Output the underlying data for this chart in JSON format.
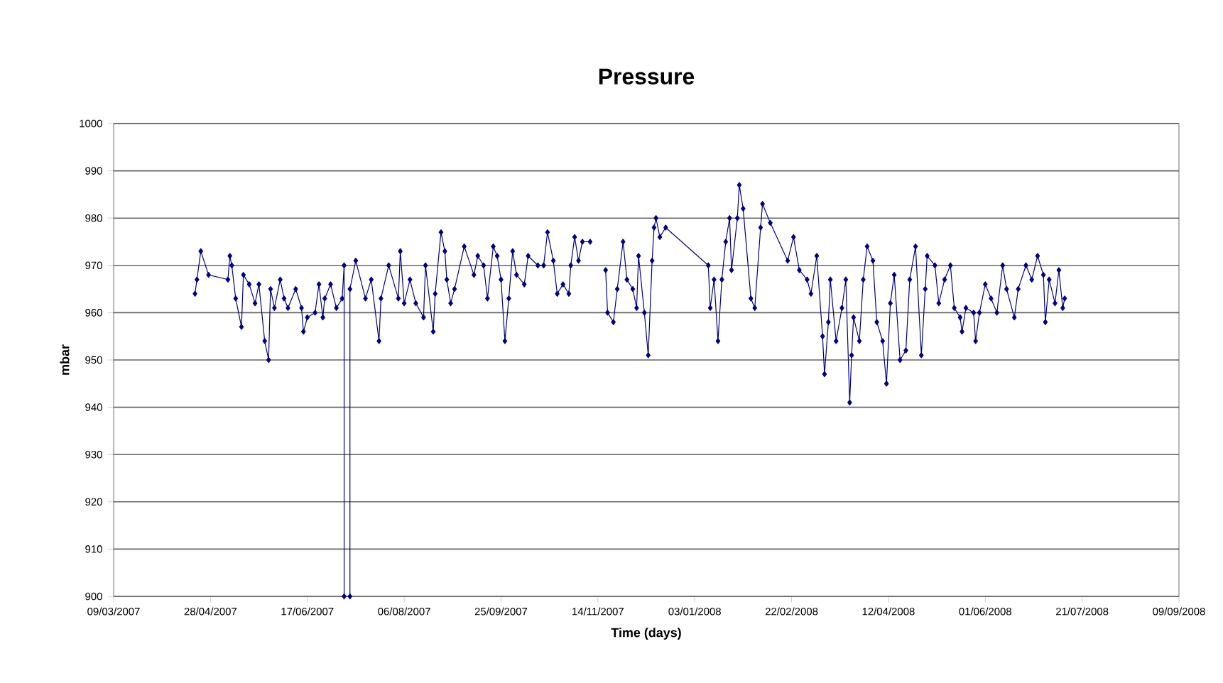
{
  "chart_data": {
    "type": "line",
    "title": "Pressure",
    "xlabel": "Time (days)",
    "ylabel": "mbar",
    "x": [
      "2007-04-20",
      "2007-04-21",
      "2007-04-23",
      "2007-04-27",
      "2007-05-07",
      "2007-05-08",
      "2007-05-09",
      "2007-05-11",
      "2007-05-14",
      "2007-05-15",
      "2007-05-18",
      "2007-05-21",
      "2007-05-23",
      "2007-05-26",
      "2007-05-28",
      "2007-05-29",
      "2007-05-31",
      "2007-06-03",
      "2007-06-05",
      "2007-06-07",
      "2007-06-11",
      "2007-06-14",
      "2007-06-15",
      "2007-06-17",
      "2007-06-21",
      "2007-06-23",
      "2007-06-25",
      "2007-06-26",
      "2007-06-29",
      "2007-07-02",
      "2007-07-05",
      "2007-07-06",
      "2007-07-06",
      "2007-07-09",
      "2007-07-09",
      "2007-07-12",
      "2007-07-17",
      "2007-07-20",
      "2007-07-24",
      "2007-07-25",
      "2007-07-29",
      "2007-08-03",
      "2007-08-04",
      "2007-08-06",
      "2007-08-09",
      "2007-08-12",
      "2007-08-16",
      "2007-08-17",
      "2007-08-21",
      "2007-08-22",
      "2007-08-25",
      "2007-08-27",
      "2007-08-28",
      "2007-08-30",
      "2007-09-01",
      "2007-09-06",
      "2007-09-11",
      "2007-09-13",
      "2007-09-16",
      "2007-09-18",
      "2007-09-21",
      "2007-09-23",
      "2007-09-25",
      "2007-09-27",
      "2007-09-29",
      "2007-10-01",
      "2007-10-03",
      "2007-10-07",
      "2007-10-09",
      "2007-10-14",
      "2007-10-17",
      "2007-10-19",
      "2007-10-22",
      "2007-10-24",
      "2007-10-27",
      "2007-10-30",
      "2007-10-31",
      "2007-11-02",
      "2007-11-04",
      "2007-11-06",
      "2007-11-10",
      "2007-11-14",
      "2007-11-18",
      "2007-11-19",
      "2007-11-22",
      "2007-11-24",
      "2007-11-27",
      "2007-11-29",
      "2007-12-02",
      "2007-12-04",
      "2007-12-05",
      "2007-12-08",
      "2007-12-10",
      "2007-12-12",
      "2007-12-13",
      "2007-12-14",
      "2007-12-16",
      "2007-12-19",
      "2008-01-10",
      "2008-01-11",
      "2008-01-13",
      "2008-01-15",
      "2008-01-17",
      "2008-01-19",
      "2008-01-21",
      "2008-01-22",
      "2008-01-25",
      "2008-01-26",
      "2008-01-28",
      "2008-02-01",
      "2008-02-03",
      "2008-02-06",
      "2008-02-07",
      "2008-02-11",
      "2008-02-20",
      "2008-02-23",
      "2008-02-26",
      "2008-03-01",
      "2008-03-03",
      "2008-03-06",
      "2008-03-09",
      "2008-03-10",
      "2008-03-12",
      "2008-03-13",
      "2008-03-16",
      "2008-03-19",
      "2008-03-21",
      "2008-03-23",
      "2008-03-24",
      "2008-03-25",
      "2008-03-28",
      "2008-03-30",
      "2008-04-01",
      "2008-04-04",
      "2008-04-06",
      "2008-04-09",
      "2008-04-11",
      "2008-04-13",
      "2008-04-15",
      "2008-04-18",
      "2008-04-21",
      "2008-04-23",
      "2008-04-26",
      "2008-04-29",
      "2008-05-01",
      "2008-05-02",
      "2008-05-06",
      "2008-05-08",
      "2008-05-11",
      "2008-05-14",
      "2008-05-16",
      "2008-05-19",
      "2008-05-20",
      "2008-05-22",
      "2008-05-26",
      "2008-05-27",
      "2008-05-29",
      "2008-06-01",
      "2008-06-04",
      "2008-06-07",
      "2008-06-10",
      "2008-06-12",
      "2008-06-16",
      "2008-06-18",
      "2008-06-22",
      "2008-06-25",
      "2008-06-28",
      "2008-07-01",
      "2008-07-02",
      "2008-07-04",
      "2008-07-07",
      "2008-07-09",
      "2008-07-11",
      "2008-07-12"
    ],
    "series": [
      {
        "color": "#000080",
        "values": [
          964,
          967,
          973,
          968,
          967,
          972,
          970,
          963,
          957,
          968,
          966,
          962,
          966,
          954,
          950,
          965,
          961,
          967,
          963,
          961,
          965,
          961,
          956,
          959,
          960,
          966,
          959,
          963,
          966,
          961,
          963,
          970,
          900,
          900,
          965,
          971,
          963,
          967,
          954,
          963,
          970,
          963,
          973,
          962,
          967,
          962,
          959,
          970,
          956,
          964,
          977,
          973,
          967,
          962,
          965,
          974,
          968,
          972,
          970,
          963,
          974,
          972,
          967,
          954,
          963,
          973,
          968,
          966,
          972,
          970,
          970,
          977,
          971,
          964,
          966,
          964,
          970,
          976,
          971,
          975,
          975,
          null,
          969,
          960,
          958,
          965,
          975,
          967,
          965,
          961,
          972,
          960,
          951,
          971,
          978,
          980,
          976,
          978,
          970,
          961,
          967,
          954,
          967,
          975,
          980,
          969,
          980,
          987,
          982,
          963,
          961,
          978,
          983,
          979,
          971,
          976,
          969,
          967,
          964,
          972,
          955,
          947,
          958,
          967,
          954,
          961,
          967,
          941,
          951,
          959,
          954,
          967,
          974,
          971,
          958,
          954,
          945,
          962,
          968,
          950,
          952,
          967,
          974,
          951,
          965,
          972,
          970,
          962,
          967,
          970,
          961,
          959,
          956,
          961,
          960,
          954,
          960,
          966,
          963,
          960,
          970,
          965,
          959,
          965,
          970,
          967,
          972,
          968,
          958,
          967,
          962,
          969,
          961,
          963
        ]
      }
    ],
    "xlim": [
      "2007-03-09",
      "2008-09-09"
    ],
    "xticks": [
      {
        "value": "2007-03-09",
        "label": "09/03/2007"
      },
      {
        "value": "2007-04-28",
        "label": "28/04/2007"
      },
      {
        "value": "2007-06-17",
        "label": "17/06/2007"
      },
      {
        "value": "2007-08-06",
        "label": "06/08/2007"
      },
      {
        "value": "2007-09-25",
        "label": "25/09/2007"
      },
      {
        "value": "2007-11-14",
        "label": "14/11/2007"
      },
      {
        "value": "2008-01-03",
        "label": "03/01/2008"
      },
      {
        "value": "2008-02-22",
        "label": "22/02/2008"
      },
      {
        "value": "2008-04-12",
        "label": "12/04/2008"
      },
      {
        "value": "2008-06-01",
        "label": "01/06/2008"
      },
      {
        "value": "2008-07-21",
        "label": "21/07/2008"
      },
      {
        "value": "2008-09-09",
        "label": "09/09/2008"
      }
    ],
    "ylim": [
      900,
      1000
    ],
    "yticks": [
      900,
      910,
      920,
      930,
      940,
      950,
      960,
      970,
      980,
      990,
      1000
    ],
    "grid": "y",
    "marker": "diamond",
    "line_style": "solid"
  }
}
